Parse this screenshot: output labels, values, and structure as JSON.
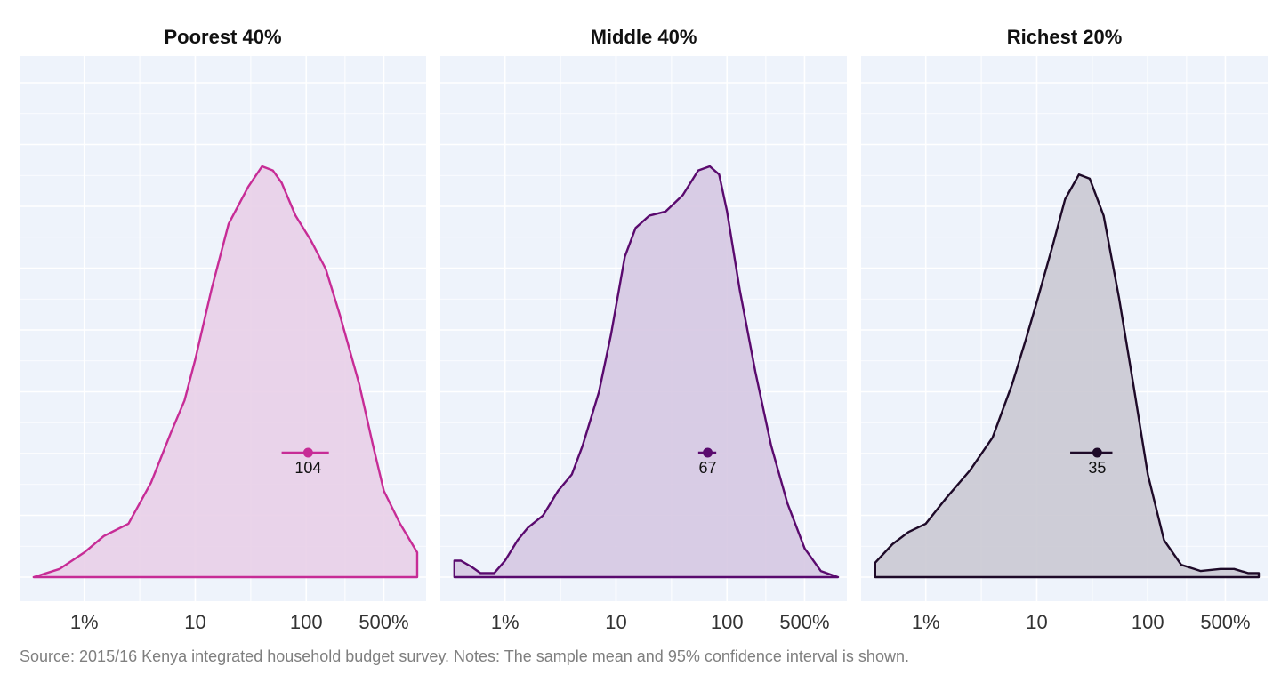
{
  "caption": "Source: 2015/16 Kenya integrated household budget survey. Notes: The sample mean and 95% confidence interval is shown.",
  "chart_data": {
    "type": "area",
    "subtype": "density-facets",
    "x_scale": "log10",
    "xlim": [
      0.3,
      1000
    ],
    "x_ticks": [
      {
        "value": 1,
        "label": "1%"
      },
      {
        "value": 10,
        "label": "10"
      },
      {
        "value": 100,
        "label": "100"
      },
      {
        "value": 500,
        "label": "500%"
      }
    ],
    "y_ticks_shown": false,
    "grid": true,
    "background": "#eef3fb",
    "panels": [
      {
        "title": "Poorest 40%",
        "color": "#c72c96",
        "fill": "#e7cde6",
        "mean": 104,
        "mean_label": "104",
        "ci": [
          60,
          160
        ],
        "density": [
          [
            0.35,
            0
          ],
          [
            0.6,
            0.02
          ],
          [
            1.0,
            0.06
          ],
          [
            1.5,
            0.1
          ],
          [
            2.5,
            0.13
          ],
          [
            4,
            0.23
          ],
          [
            6,
            0.35
          ],
          [
            8,
            0.43
          ],
          [
            10,
            0.53
          ],
          [
            14,
            0.7
          ],
          [
            20,
            0.86
          ],
          [
            30,
            0.95
          ],
          [
            40,
            1.0
          ],
          [
            50,
            0.99
          ],
          [
            60,
            0.96
          ],
          [
            80,
            0.88
          ],
          [
            110,
            0.82
          ],
          [
            150,
            0.75
          ],
          [
            200,
            0.64
          ],
          [
            300,
            0.47
          ],
          [
            400,
            0.32
          ],
          [
            500,
            0.21
          ],
          [
            700,
            0.13
          ],
          [
            1000,
            0.06
          ],
          [
            1000,
            0
          ]
        ]
      },
      {
        "title": "Middle 40%",
        "color": "#5a0a6e",
        "fill": "#d3c4e0",
        "mean": 67,
        "mean_label": "67",
        "ci": [
          55,
          80
        ],
        "density": [
          [
            0.35,
            0
          ],
          [
            0.35,
            0.04
          ],
          [
            0.4,
            0.04
          ],
          [
            0.5,
            0.025
          ],
          [
            0.6,
            0.01
          ],
          [
            0.8,
            0.01
          ],
          [
            1.0,
            0.04
          ],
          [
            1.3,
            0.09
          ],
          [
            1.6,
            0.12
          ],
          [
            2.2,
            0.15
          ],
          [
            3,
            0.21
          ],
          [
            4,
            0.25
          ],
          [
            5,
            0.32
          ],
          [
            7,
            0.45
          ],
          [
            9,
            0.59
          ],
          [
            12,
            0.78
          ],
          [
            15,
            0.85
          ],
          [
            20,
            0.88
          ],
          [
            28,
            0.89
          ],
          [
            40,
            0.93
          ],
          [
            55,
            0.99
          ],
          [
            70,
            1.0
          ],
          [
            85,
            0.98
          ],
          [
            100,
            0.89
          ],
          [
            130,
            0.7
          ],
          [
            180,
            0.5
          ],
          [
            250,
            0.32
          ],
          [
            350,
            0.18
          ],
          [
            500,
            0.07
          ],
          [
            700,
            0.015
          ],
          [
            1000,
            0.0
          ]
        ]
      },
      {
        "title": "Richest 20%",
        "color": "#1e0a28",
        "fill": "#c8c6d0",
        "mean": 35,
        "mean_label": "35",
        "ci": [
          20,
          48
        ],
        "density": [
          [
            0.35,
            0
          ],
          [
            0.35,
            0.035
          ],
          [
            0.5,
            0.08
          ],
          [
            0.7,
            0.11
          ],
          [
            1.0,
            0.13
          ],
          [
            1.5,
            0.19
          ],
          [
            2.5,
            0.26
          ],
          [
            4,
            0.34
          ],
          [
            6,
            0.47
          ],
          [
            8,
            0.58
          ],
          [
            10,
            0.67
          ],
          [
            14,
            0.81
          ],
          [
            18,
            0.92
          ],
          [
            24,
            0.98
          ],
          [
            30,
            0.97
          ],
          [
            40,
            0.88
          ],
          [
            55,
            0.68
          ],
          [
            75,
            0.46
          ],
          [
            100,
            0.25
          ],
          [
            140,
            0.09
          ],
          [
            200,
            0.03
          ],
          [
            300,
            0.015
          ],
          [
            450,
            0.02
          ],
          [
            600,
            0.02
          ],
          [
            800,
            0.01
          ],
          [
            1000,
            0.01
          ],
          [
            1000,
            0
          ]
        ]
      }
    ]
  }
}
